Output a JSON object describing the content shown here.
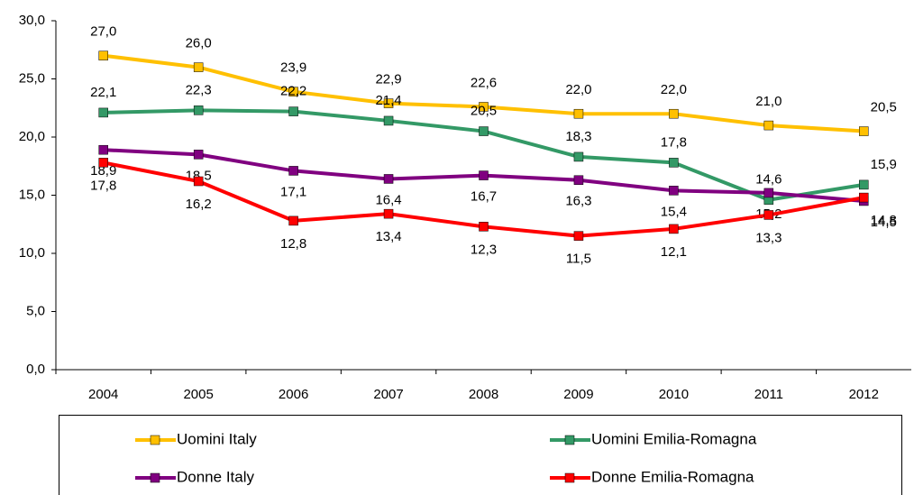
{
  "chart_data": {
    "type": "line",
    "categories": [
      "2004",
      "2005",
      "2006",
      "2007",
      "2008",
      "2009",
      "2010",
      "2011",
      "2012"
    ],
    "series": [
      {
        "name": "Uomini Italy",
        "color": "#ffc000",
        "values": [
          27.0,
          26.0,
          23.9,
          22.9,
          22.6,
          22.0,
          22.0,
          21.0,
          20.5
        ],
        "value_labels": [
          "27,0",
          "26,0",
          "23,9",
          "22,9",
          "22,6",
          "22,0",
          "22,0",
          "21,0",
          "20,5"
        ]
      },
      {
        "name": "Uomini Emilia-Romagna",
        "color": "#339966",
        "values": [
          22.1,
          22.3,
          22.2,
          21.4,
          20.5,
          18.3,
          17.8,
          14.6,
          15.9
        ],
        "value_labels": [
          "22,1",
          "22,3",
          "22,2",
          "21,4",
          "20,5",
          "18,3",
          "17,8",
          "14,6",
          "15,9"
        ]
      },
      {
        "name": "Donne Italy",
        "color": "#800080",
        "values": [
          18.9,
          18.5,
          17.1,
          16.4,
          16.7,
          16.3,
          15.4,
          15.2,
          14.5
        ],
        "value_labels": [
          "18,9",
          "18,5",
          "17,1",
          "16,4",
          "16,7",
          "16,3",
          "15,4",
          "15,2",
          "14,5"
        ]
      },
      {
        "name": "Donne Emilia-Romagna",
        "color": "#ff0000",
        "values": [
          17.8,
          16.2,
          12.8,
          13.4,
          12.3,
          11.5,
          12.1,
          13.3,
          14.8
        ],
        "value_labels": [
          "17,8",
          "16,2",
          "12,8",
          "13,4",
          "12,3",
          "11,5",
          "12,1",
          "13,3",
          "14,8"
        ]
      }
    ],
    "ylim": [
      0,
      30
    ],
    "yticks": [
      {
        "value": 0,
        "label": "0,0"
      },
      {
        "value": 5,
        "label": "5,0"
      },
      {
        "value": 10,
        "label": "10,0"
      },
      {
        "value": 15,
        "label": "15,0"
      },
      {
        "value": 20,
        "label": "20,0"
      },
      {
        "value": 25,
        "label": "25,0"
      },
      {
        "value": 30,
        "label": "30,0"
      }
    ],
    "grid": false,
    "legend": "bottom"
  }
}
